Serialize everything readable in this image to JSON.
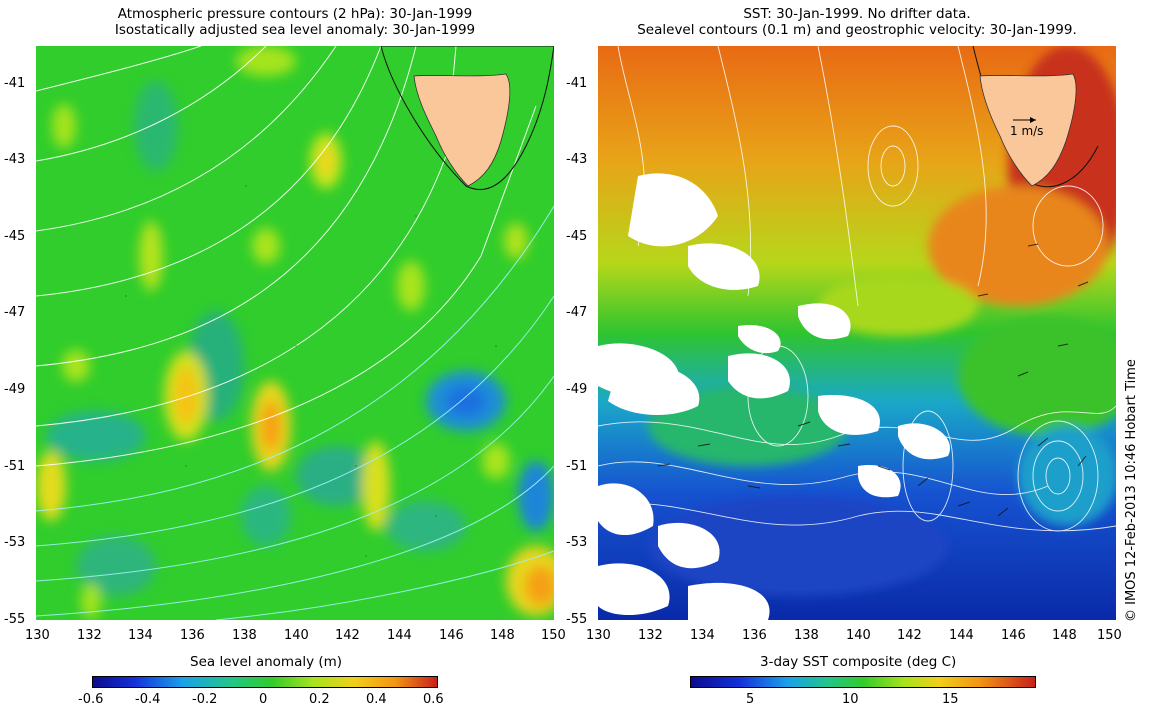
{
  "left_panel": {
    "title_line1": "Atmospheric pressure contours (2 hPa): 30-Jan-1999",
    "title_line2": "Isostatically adjusted sea level anomaly: 30-Jan-1999",
    "x_ticks": [
      "130",
      "132",
      "134",
      "136",
      "138",
      "140",
      "142",
      "144",
      "146",
      "148",
      "150"
    ],
    "y_ticks": [
      "-41",
      "-43",
      "-45",
      "-47",
      "-49",
      "-51",
      "-53",
      "-55"
    ],
    "colorbar_label": "Sea level anomaly (m)",
    "colorbar_ticks": [
      "-0.6",
      "-0.4",
      "-0.2",
      "0",
      "0.2",
      "0.4",
      "0.6"
    ]
  },
  "right_panel": {
    "title_line1": "SST: 30-Jan-1999. No drifter data.",
    "title_line2": "Sealevel contours (0.1 m) and geostrophic velocity: 30-Jan-1999.",
    "x_ticks": [
      "130",
      "132",
      "134",
      "136",
      "138",
      "140",
      "142",
      "144",
      "146",
      "148",
      "150"
    ],
    "y_ticks": [
      "-41",
      "-43",
      "-45",
      "-47",
      "-49",
      "-51",
      "-53",
      "-55"
    ],
    "velocity_scale_label": "1 m/s",
    "colorbar_label": "3-day SST composite (deg C)",
    "colorbar_ticks": [
      "5",
      "10",
      "15"
    ]
  },
  "credit": "© IMOS 12-Feb-2013 10:46 Hobart Time",
  "colors": {
    "land": "#f9c79a",
    "ocean_mid": "#22c23a",
    "cloud": "#ffffff"
  }
}
